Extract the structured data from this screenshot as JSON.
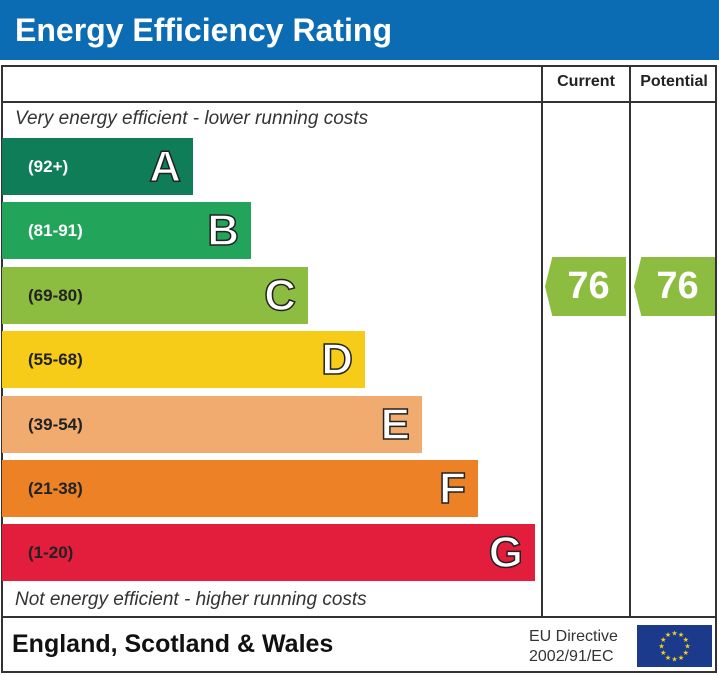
{
  "title": "Energy Efficiency Rating",
  "chart_data": {
    "type": "bar",
    "title": "Energy Efficiency Rating",
    "columns": [
      "Current",
      "Potential"
    ],
    "top_note": "Very energy efficient - lower running costs",
    "bottom_note": "Not energy efficient - higher running costs",
    "bands": [
      {
        "letter": "A",
        "range": "(92+)",
        "color": "#0f7d58",
        "range_color": "#ffffff"
      },
      {
        "letter": "B",
        "range": "(81-91)",
        "color": "#22a55a",
        "range_color": "#ffffff"
      },
      {
        "letter": "C",
        "range": "(69-80)",
        "color": "#8dbd40",
        "range_color": "#222222"
      },
      {
        "letter": "D",
        "range": "(55-68)",
        "color": "#f6cc18",
        "range_color": "#222222"
      },
      {
        "letter": "E",
        "range": "(39-54)",
        "color": "#f2ab6e",
        "range_color": "#222222"
      },
      {
        "letter": "F",
        "range": "(21-38)",
        "color": "#ec8126",
        "range_color": "#222222"
      },
      {
        "letter": "G",
        "range": "(1-20)",
        "color": "#e31d3c",
        "range_color": "#222222"
      }
    ],
    "current": {
      "value": "76",
      "band": "C"
    },
    "potential": {
      "value": "76",
      "band": "C"
    }
  },
  "footer": {
    "country": "England, Scotland & Wales",
    "directive_line1": "EU Directive",
    "directive_line2": "2002/91/EC"
  }
}
